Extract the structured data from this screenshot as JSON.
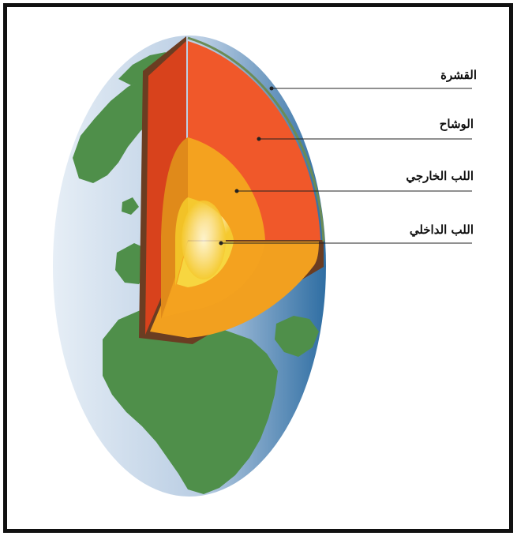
{
  "colors": {
    "frame": "#111111",
    "ocean_light": "#dfe9f3",
    "ocean_dark": "#3a78a8",
    "land": "#4f8f4a",
    "crust": "#6b3d22",
    "mantle": "#f0582a",
    "mantle_dark": "#d8421c",
    "outer_core": "#f4a21f",
    "inner_core_edge": "#f6cf33",
    "inner_core_center": "#fff9e6"
  },
  "labels": {
    "crust": "القشرة",
    "mantle": "الوشاح",
    "outer_core": "اللب الخارجي",
    "inner_core": "اللب الداخلي"
  }
}
